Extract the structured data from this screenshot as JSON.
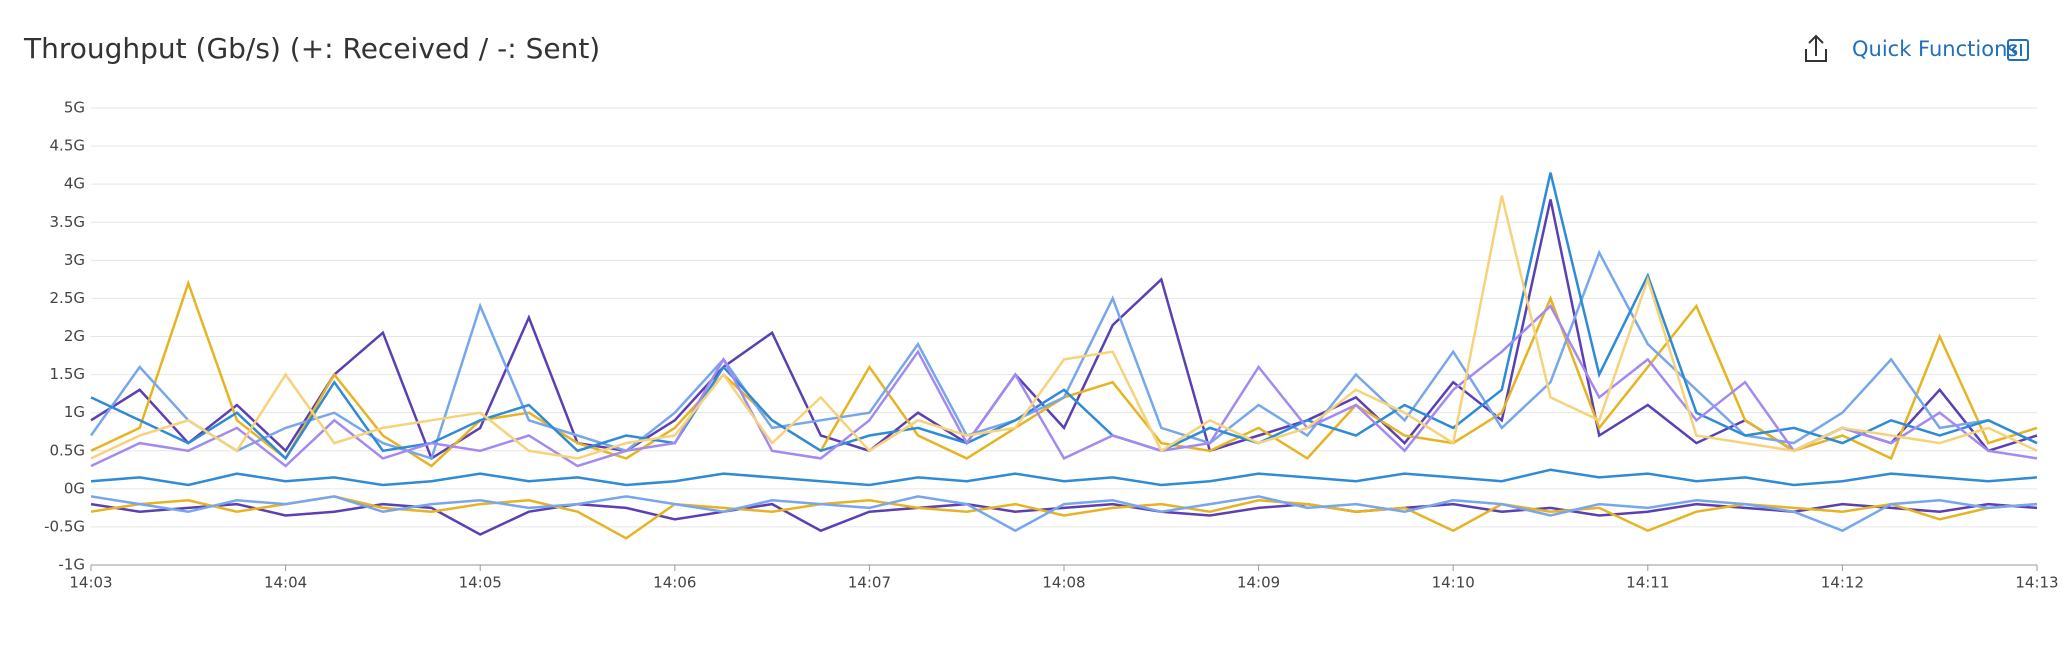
{
  "toolbar": {
    "quick_functions": "Quick Functions"
  },
  "chart_data": {
    "type": "line",
    "title": "Throughput (Gb/s) (+: Received / -: Sent)",
    "x": [
      843,
      843.25,
      843.5,
      843.75,
      844,
      844.25,
      844.5,
      844.75,
      845,
      845.25,
      845.5,
      845.75,
      846,
      846.25,
      846.5,
      846.75,
      847,
      847.25,
      847.5,
      847.75,
      848,
      848.25,
      848.5,
      848.75,
      849,
      849.25,
      849.5,
      849.75,
      850,
      850.25,
      850.5,
      850.75,
      851,
      851.25,
      851.5,
      851.75,
      852,
      852.25,
      852.5,
      852.75,
      853
    ],
    "xlim": [
      843,
      853
    ],
    "xticks": [
      {
        "value": 843,
        "label": "14:03"
      },
      {
        "value": 844,
        "label": "14:04"
      },
      {
        "value": 845,
        "label": "14:05"
      },
      {
        "value": 846,
        "label": "14:06"
      },
      {
        "value": 847,
        "label": "14:07"
      },
      {
        "value": 848,
        "label": "14:08"
      },
      {
        "value": 849,
        "label": "14:09"
      },
      {
        "value": 850,
        "label": "14:10"
      },
      {
        "value": 851,
        "label": "14:11"
      },
      {
        "value": 852,
        "label": "14:12"
      },
      {
        "value": 853,
        "label": "14:13"
      }
    ],
    "ylim": [
      -1,
      5
    ],
    "yticks": [
      {
        "value": -1,
        "label": "-1G"
      },
      {
        "value": -0.5,
        "label": "-0.5G"
      },
      {
        "value": 0,
        "label": "0G"
      },
      {
        "value": 0.5,
        "label": "0.5G"
      },
      {
        "value": 1,
        "label": "1G"
      },
      {
        "value": 1.5,
        "label": "1.5G"
      },
      {
        "value": 2,
        "label": "2G"
      },
      {
        "value": 2.5,
        "label": "2.5G"
      },
      {
        "value": 3,
        "label": "3G"
      },
      {
        "value": 3.5,
        "label": "3.5G"
      },
      {
        "value": 4,
        "label": "4G"
      },
      {
        "value": 4.5,
        "label": "4.5G"
      },
      {
        "value": 5,
        "label": "5G"
      }
    ],
    "grid": true,
    "series": [
      {
        "color": "#5b3fb3",
        "values": [
          0.9,
          1.3,
          0.6,
          1.1,
          0.5,
          1.5,
          2.05,
          0.4,
          0.8,
          2.25,
          0.6,
          0.5,
          0.9,
          1.6,
          2.05,
          0.7,
          0.5,
          1.0,
          0.6,
          1.5,
          0.8,
          2.15,
          2.75,
          0.5,
          0.7,
          0.9,
          1.2,
          0.6,
          1.4,
          0.9,
          3.8,
          0.7,
          1.1,
          0.6,
          0.9,
          0.5,
          0.8,
          0.6,
          1.3,
          0.5,
          0.7
        ]
      },
      {
        "color": "#e6b422",
        "values": [
          0.5,
          0.8,
          2.7,
          0.9,
          0.4,
          1.5,
          0.7,
          0.3,
          0.9,
          1.0,
          0.6,
          0.4,
          0.8,
          1.5,
          0.9,
          0.5,
          1.6,
          0.7,
          0.4,
          0.8,
          1.2,
          1.4,
          0.6,
          0.5,
          0.8,
          0.4,
          1.1,
          0.7,
          0.6,
          1.0,
          2.5,
          0.8,
          1.6,
          2.4,
          0.9,
          0.5,
          0.7,
          0.4,
          2.0,
          0.6,
          0.8
        ]
      },
      {
        "color": "#78a6ec",
        "values": [
          0.7,
          1.6,
          0.9,
          0.5,
          0.8,
          1.0,
          0.6,
          0.4,
          2.4,
          0.9,
          0.7,
          0.5,
          1.0,
          1.7,
          0.8,
          0.9,
          1.0,
          1.9,
          0.7,
          0.9,
          1.2,
          2.5,
          0.8,
          0.6,
          1.1,
          0.7,
          1.5,
          0.9,
          1.8,
          0.8,
          1.4,
          3.1,
          1.9,
          1.3,
          0.7,
          0.6,
          1.0,
          1.7,
          0.8,
          0.9,
          0.6
        ]
      },
      {
        "color": "#2f8bd6",
        "values": [
          1.2,
          0.9,
          0.6,
          1.0,
          0.4,
          1.4,
          0.5,
          0.6,
          0.9,
          1.1,
          0.5,
          0.7,
          0.6,
          1.6,
          0.9,
          0.5,
          0.7,
          0.8,
          0.6,
          0.9,
          1.3,
          0.7,
          0.5,
          0.8,
          0.6,
          0.9,
          0.7,
          1.1,
          0.8,
          1.3,
          4.15,
          1.5,
          2.8,
          1.0,
          0.7,
          0.8,
          0.6,
          0.9,
          0.7,
          0.9,
          0.6
        ]
      },
      {
        "color": "#a48af0",
        "values": [
          0.3,
          0.6,
          0.5,
          0.8,
          0.3,
          0.9,
          0.4,
          0.6,
          0.5,
          0.7,
          0.3,
          0.5,
          0.6,
          1.7,
          0.5,
          0.4,
          0.9,
          1.8,
          0.6,
          1.5,
          0.4,
          0.7,
          0.5,
          0.6,
          1.6,
          0.8,
          1.1,
          0.5,
          1.3,
          1.8,
          2.4,
          1.2,
          1.7,
          0.9,
          1.4,
          0.5,
          0.8,
          0.6,
          1.0,
          0.5,
          0.4
        ]
      },
      {
        "color": "#f6d27a",
        "values": [
          0.4,
          0.7,
          0.9,
          0.5,
          1.5,
          0.6,
          0.8,
          0.9,
          1.0,
          0.5,
          0.4,
          0.6,
          0.7,
          1.5,
          0.6,
          1.2,
          0.5,
          0.9,
          0.7,
          0.8,
          1.7,
          1.8,
          0.5,
          0.9,
          0.6,
          0.8,
          1.3,
          1.0,
          0.6,
          3.85,
          1.2,
          0.9,
          2.75,
          0.7,
          0.6,
          0.5,
          0.8,
          0.7,
          0.6,
          0.8,
          0.5
        ]
      },
      {
        "color": "#5b3fb3",
        "values": [
          -0.2,
          -0.3,
          -0.25,
          -0.2,
          -0.35,
          -0.3,
          -0.2,
          -0.25,
          -0.6,
          -0.3,
          -0.2,
          -0.25,
          -0.4,
          -0.3,
          -0.2,
          -0.55,
          -0.3,
          -0.25,
          -0.2,
          -0.3,
          -0.25,
          -0.2,
          -0.3,
          -0.35,
          -0.25,
          -0.2,
          -0.3,
          -0.25,
          -0.2,
          -0.3,
          -0.25,
          -0.35,
          -0.3,
          -0.2,
          -0.25,
          -0.3,
          -0.2,
          -0.25,
          -0.3,
          -0.2,
          -0.25
        ]
      },
      {
        "color": "#e6b422",
        "values": [
          -0.3,
          -0.2,
          -0.15,
          -0.3,
          -0.2,
          -0.1,
          -0.25,
          -0.3,
          -0.2,
          -0.15,
          -0.3,
          -0.65,
          -0.2,
          -0.25,
          -0.3,
          -0.2,
          -0.15,
          -0.25,
          -0.3,
          -0.2,
          -0.35,
          -0.25,
          -0.2,
          -0.3,
          -0.15,
          -0.2,
          -0.3,
          -0.25,
          -0.55,
          -0.2,
          -0.3,
          -0.25,
          -0.55,
          -0.3,
          -0.2,
          -0.25,
          -0.3,
          -0.2,
          -0.4,
          -0.25,
          -0.2
        ]
      },
      {
        "color": "#78a6ec",
        "values": [
          -0.1,
          -0.2,
          -0.3,
          -0.15,
          -0.2,
          -0.1,
          -0.3,
          -0.2,
          -0.15,
          -0.25,
          -0.2,
          -0.1,
          -0.2,
          -0.3,
          -0.15,
          -0.2,
          -0.25,
          -0.1,
          -0.2,
          -0.55,
          -0.2,
          -0.15,
          -0.3,
          -0.2,
          -0.1,
          -0.25,
          -0.2,
          -0.3,
          -0.15,
          -0.2,
          -0.35,
          -0.2,
          -0.25,
          -0.15,
          -0.2,
          -0.3,
          -0.55,
          -0.2,
          -0.15,
          -0.25,
          -0.2
        ]
      },
      {
        "color": "#2f8bd6",
        "values": [
          0.1,
          0.15,
          0.05,
          0.2,
          0.1,
          0.15,
          0.05,
          0.1,
          0.2,
          0.1,
          0.15,
          0.05,
          0.1,
          0.2,
          0.15,
          0.1,
          0.05,
          0.15,
          0.1,
          0.2,
          0.1,
          0.15,
          0.05,
          0.1,
          0.2,
          0.15,
          0.1,
          0.2,
          0.15,
          0.1,
          0.25,
          0.15,
          0.2,
          0.1,
          0.15,
          0.05,
          0.1,
          0.2,
          0.15,
          0.1,
          0.15
        ]
      }
    ]
  }
}
